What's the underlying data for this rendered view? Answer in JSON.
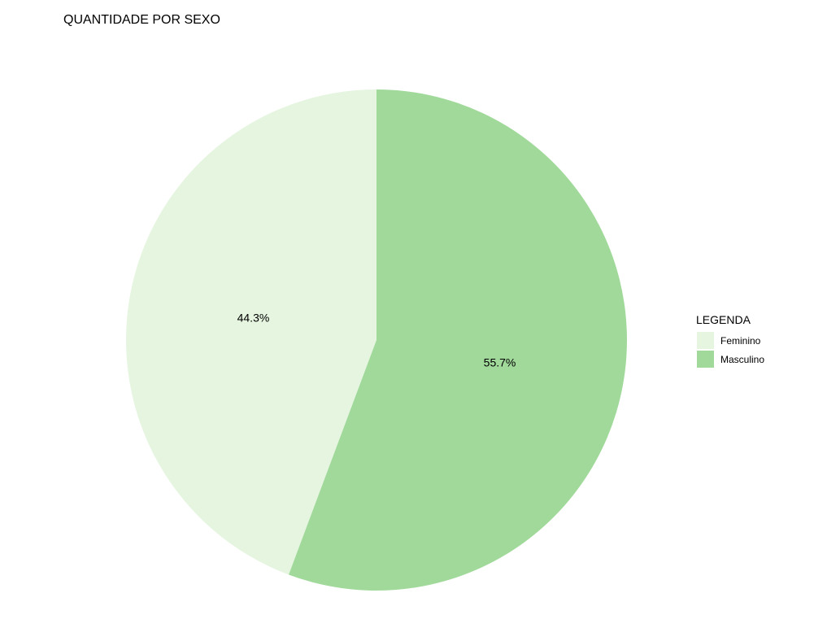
{
  "chart_data": {
    "type": "pie",
    "title": "QUANTIDADE POR SEXO",
    "legend_title": "LEGENDA",
    "legend_position": "right",
    "categories": [
      "Feminino",
      "Masculino"
    ],
    "values": [
      44.3,
      55.7
    ],
    "labels": [
      "44.3%",
      "55.7%"
    ],
    "colors": [
      "#e5f5e0",
      "#a1d99b"
    ],
    "direction": "counterclockwise",
    "start": "top"
  }
}
